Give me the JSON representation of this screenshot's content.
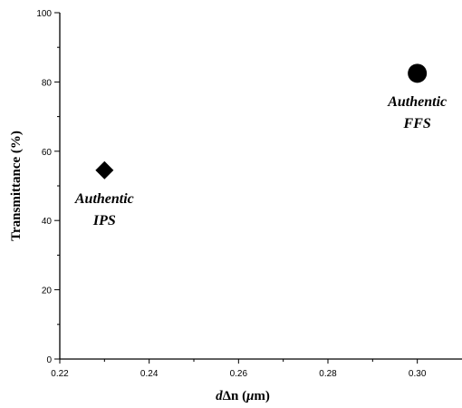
{
  "chart_data": {
    "type": "scatter",
    "xlabel": "dΔn (μm)",
    "ylabel": "Transmittance (%)",
    "xlim": [
      0.22,
      0.31
    ],
    "ylim": [
      0,
      100
    ],
    "x_ticks": [
      "0.22",
      "0.24",
      "0.26",
      "0.28",
      "0.30"
    ],
    "x_tick_values": [
      0.22,
      0.24,
      0.26,
      0.28,
      0.3
    ],
    "y_ticks": [
      "0",
      "20",
      "40",
      "60",
      "80",
      "100"
    ],
    "y_tick_values": [
      0,
      20,
      40,
      60,
      80,
      100
    ],
    "grid": false,
    "points": [
      {
        "x": 0.23,
        "y": 54.5,
        "marker": "diamond",
        "color": "#000000",
        "label_lines": [
          "Authentic",
          "IPS"
        ]
      },
      {
        "x": 0.3,
        "y": 82.5,
        "marker": "circle",
        "color": "#000000",
        "label_lines": [
          "Authentic",
          "FFS"
        ]
      }
    ]
  }
}
